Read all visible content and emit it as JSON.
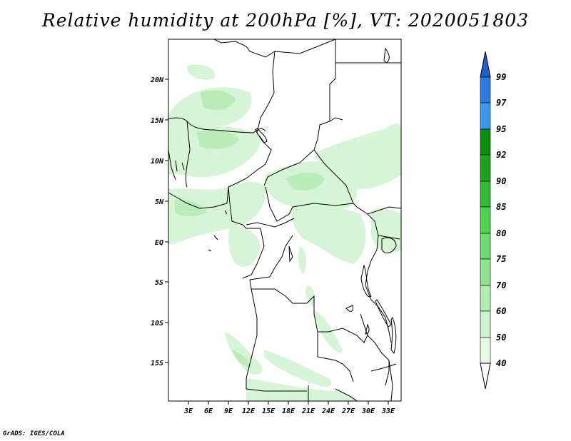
{
  "title": "Relative humidity at 200hPa [%], VT: 2020051803",
  "footer": "GrADS: IGES/COLA",
  "map": {
    "lat_labels": [
      "20N",
      "15N",
      "10N",
      "5N",
      "EQ",
      "5S",
      "10S",
      "15S"
    ],
    "lon_labels": [
      "3E",
      "6E",
      "9E",
      "12E",
      "15E",
      "18E",
      "21E",
      "24E",
      "27E",
      "30E",
      "33E"
    ]
  },
  "legend": {
    "labels": [
      "99",
      "97",
      "95",
      "92",
      "90",
      "85",
      "80",
      "75",
      "70",
      "60",
      "50",
      "40"
    ],
    "colors": [
      "#1d5fd3",
      "#2a7ce0",
      "#3c98ee",
      "#0a8f0a",
      "#1ea31e",
      "#32bb32",
      "#4fd44f",
      "#6edc6e",
      "#90e690",
      "#b0eeb0",
      "#cdf5cd",
      "#e8fbe8"
    ]
  }
}
